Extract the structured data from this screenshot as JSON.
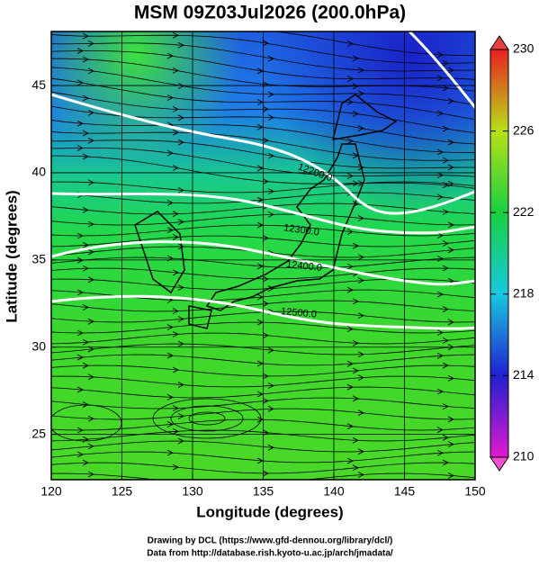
{
  "chart_data": {
    "type": "map",
    "title": "MSM 09Z03Jul2026 (200.0hPa)",
    "x_label": "Longitude (degrees)",
    "y_label": "Latitude  (degrees)",
    "xlim": [
      120,
      150
    ],
    "xticks": [
      120,
      125,
      130,
      135,
      140,
      145,
      150
    ],
    "ylim": [
      22.4,
      48.1
    ],
    "yticks": [
      25,
      30,
      35,
      40,
      45
    ],
    "grid": true,
    "colorbar": {
      "lim": [
        210,
        230
      ],
      "ticks": [
        210,
        214,
        218,
        222,
        226,
        230
      ]
    },
    "contour_labels": [
      "12200.0",
      "12300.0",
      "12400.0",
      "12500.0"
    ],
    "footer": [
      "Drawing by DCL (https://www.gfd-dennou.org/library/dcl/)",
      "Data from http://database.rish.kyoto-u.ac.jp/arch/jmadata/"
    ]
  }
}
